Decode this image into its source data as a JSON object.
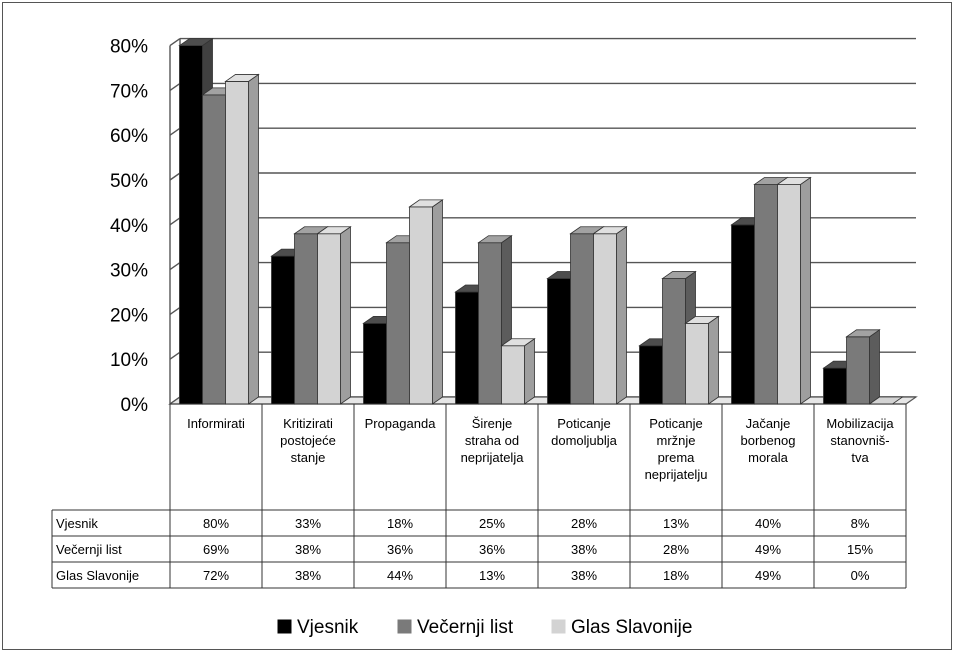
{
  "chart_data": {
    "type": "bar",
    "categories": [
      [
        "Informirati"
      ],
      [
        "Kritizirati",
        "postojeće",
        "stanje"
      ],
      [
        "Propaganda"
      ],
      [
        "Širenje",
        "straha od",
        "neprijatelja"
      ],
      [
        "Poticanje",
        "domoljublja"
      ],
      [
        "Poticanje",
        "mržnje",
        "prema",
        "neprijatelju"
      ],
      [
        "Jačanje",
        "borbenog",
        "morala"
      ],
      [
        "Mobilizacija",
        "stanovniš-",
        "tva"
      ]
    ],
    "series": [
      {
        "name": "Vjesnik",
        "values": [
          80,
          33,
          18,
          25,
          28,
          13,
          40,
          8
        ],
        "labels": [
          "80%",
          "33%",
          "18%",
          "25%",
          "28%",
          "13%",
          "40%",
          "8%"
        ],
        "color": "#000000"
      },
      {
        "name": "Večernji list",
        "values": [
          69,
          38,
          36,
          36,
          38,
          28,
          49,
          15
        ],
        "labels": [
          "69%",
          "38%",
          "36%",
          "36%",
          "38%",
          "28%",
          "49%",
          "15%"
        ],
        "color": "#7a7a7a"
      },
      {
        "name": "Glas Slavonije",
        "values": [
          72,
          38,
          44,
          13,
          38,
          18,
          49,
          0
        ],
        "labels": [
          "72%",
          "38%",
          "44%",
          "13%",
          "38%",
          "18%",
          "49%",
          "0%"
        ],
        "color": "#d3d3d3"
      }
    ],
    "yticks": [
      "0%",
      "10%",
      "20%",
      "30%",
      "40%",
      "50%",
      "60%",
      "70%",
      "80%"
    ],
    "ylim": [
      0,
      80
    ],
    "grid": true,
    "legend_position": "bottom",
    "data_table": true
  }
}
